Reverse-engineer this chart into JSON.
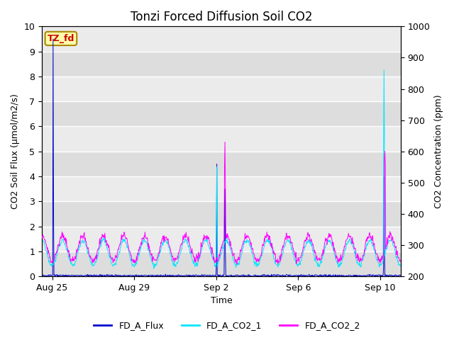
{
  "title": "Tonzi Forced Diffusion Soil CO2",
  "xlabel": "Time",
  "ylabel_left": "CO2 Soil Flux (μmol/m2/s)",
  "ylabel_right": "CO2 Concentration (ppm)",
  "ylim_left": [
    0,
    10
  ],
  "ylim_right": [
    200,
    1000
  ],
  "bg_color": "#e8e8e8",
  "bg_band_light": "#ebebeb",
  "bg_band_dark": "#d8d8d8",
  "line_colors": {
    "flux": "#0000cc",
    "co2_1": "#00e5ff",
    "co2_2": "#ff00ff"
  },
  "legend_labels": [
    "FD_A_Flux",
    "FD_A_CO2_1",
    "FD_A_CO2_2"
  ],
  "tag_label": "TZ_fd",
  "tag_bg": "#ffffaa",
  "tag_border": "#aa8800",
  "tag_text_color": "#cc0000",
  "xtick_labels": [
    "Aug 25",
    "Aug 29",
    "Sep 2",
    "Sep 6",
    "Sep 10"
  ],
  "title_fontsize": 12,
  "axis_fontsize": 9,
  "legend_fontsize": 9,
  "seed": 12345
}
